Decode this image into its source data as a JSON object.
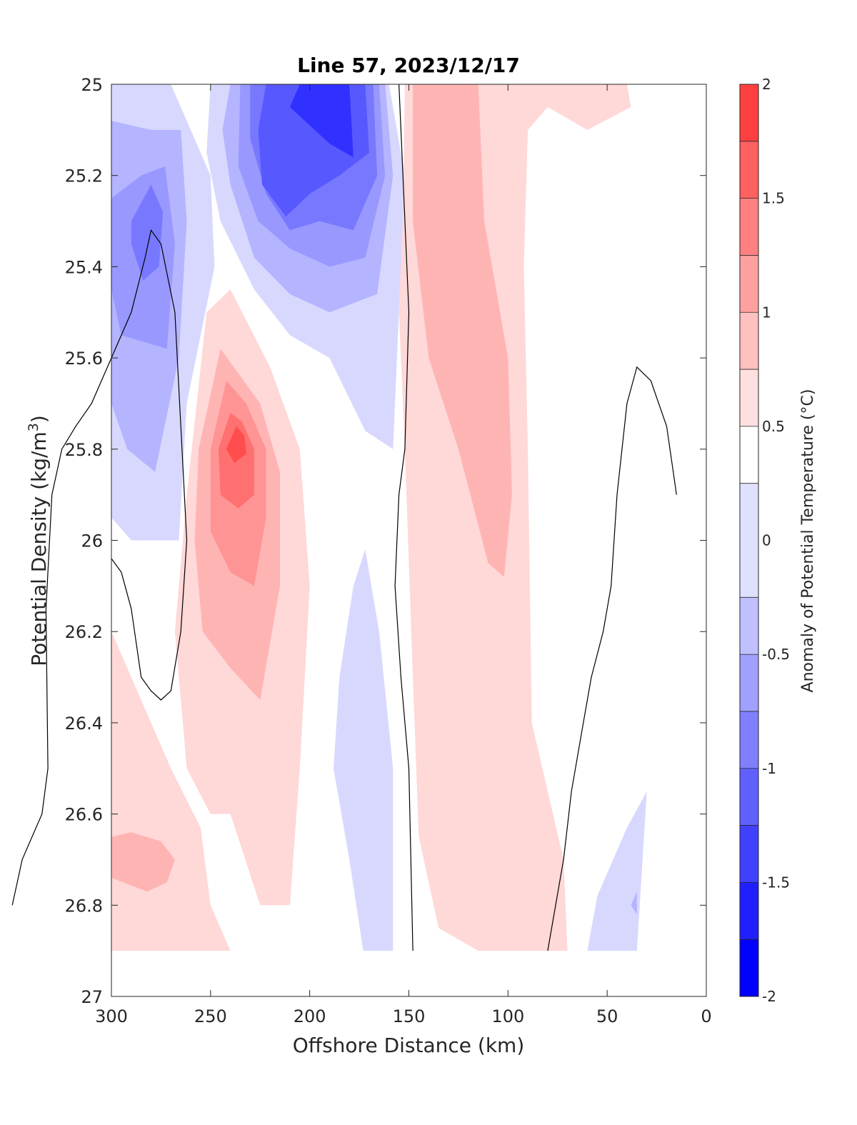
{
  "chart_data": {
    "type": "contour",
    "title": "Line 57, 2023/12/17",
    "xlabel": "Offshore Distance (km)",
    "ylabel_main": "Potential Density (kg/m",
    "ylabel_sup": "3",
    "ylabel_close": ")",
    "xlim": [
      300,
      0
    ],
    "ylim": [
      25,
      27
    ],
    "x_reversed": true,
    "y_reversed": true,
    "x_ticks": [
      300,
      250,
      200,
      150,
      100,
      50,
      0
    ],
    "x_tick_labels": [
      "300",
      "250",
      "200",
      "150",
      "100",
      "50",
      "0"
    ],
    "y_ticks": [
      25,
      25.2,
      25.4,
      25.6,
      25.8,
      26,
      26.2,
      26.4,
      26.6,
      26.8,
      27
    ],
    "y_tick_labels": [
      "25",
      "25.2",
      "25.4",
      "25.6",
      "25.8",
      "26",
      "26.2",
      "26.4",
      "26.6",
      "26.8",
      "27"
    ],
    "colorbar": {
      "label": "Anomaly of Potential Temperature (°C)",
      "range": [
        -2,
        2
      ],
      "ticks": [
        -2,
        -1.5,
        -1,
        -0.5,
        0,
        0.5,
        1,
        1.5,
        2
      ],
      "tick_labels": [
        "-2",
        "-1.5",
        "-1",
        "-0.5",
        "0",
        "0.5",
        "1",
        "1.5",
        "2"
      ],
      "levels": [
        -2,
        -1.75,
        -1.5,
        -1.25,
        -1,
        -0.75,
        -0.5,
        -0.25,
        0.25,
        0.5,
        0.75,
        1,
        1.25,
        1.5,
        1.75,
        2
      ],
      "colors": [
        "#0000ff",
        "#2020ff",
        "#4040ff",
        "#6060ff",
        "#8080ff",
        "#a0a0ff",
        "#c0c0ff",
        "#e0e0ff",
        "#ffffff",
        "#ffe0e0",
        "#ffc0c0",
        "#ffa0a0",
        "#ff8080",
        "#ff6060",
        "#ff4040",
        "#ff2020",
        "#ff0000"
      ]
    },
    "regions": [
      {
        "name": "cold-shallow-offshore",
        "anomaly": -0.25,
        "color": "#d8d8ff",
        "points": [
          [
            300,
            25
          ],
          [
            270,
            25
          ],
          [
            260,
            25.1
          ],
          [
            250,
            25.2
          ],
          [
            248,
            25.4
          ],
          [
            262,
            25.7
          ],
          [
            266,
            26
          ],
          [
            290,
            26
          ],
          [
            300,
            25.95
          ]
        ]
      },
      {
        "name": "cold-shallow-offshore-2",
        "anomaly": -0.5,
        "color": "#b4b4ff",
        "points": [
          [
            300,
            25.08
          ],
          [
            280,
            25.1
          ],
          [
            265,
            25.1
          ],
          [
            262,
            25.3
          ],
          [
            266,
            25.6
          ],
          [
            278,
            25.85
          ],
          [
            292,
            25.8
          ],
          [
            300,
            25.7
          ]
        ]
      },
      {
        "name": "cold-shallow-offshore-3",
        "anomaly": -0.75,
        "color": "#9898ff",
        "points": [
          [
            300,
            25.25
          ],
          [
            285,
            25.2
          ],
          [
            273,
            25.18
          ],
          [
            268,
            25.35
          ],
          [
            272,
            25.58
          ],
          [
            295,
            25.55
          ],
          [
            300,
            25.45
          ]
        ]
      },
      {
        "name": "cold-shallow-offshore-core",
        "anomaly": -1,
        "color": "#7878ff",
        "points": [
          [
            290,
            25.3
          ],
          [
            280,
            25.22
          ],
          [
            274,
            25.28
          ],
          [
            276,
            25.4
          ],
          [
            284,
            25.43
          ],
          [
            290,
            25.35
          ]
        ]
      },
      {
        "name": "cold-shallow-mid",
        "anomaly": -0.25,
        "color": "#d8d8ff",
        "points": [
          [
            250,
            25
          ],
          [
            230,
            25
          ],
          [
            185,
            25
          ],
          [
            160,
            25
          ],
          [
            152,
            25.2
          ],
          [
            156,
            25.6
          ],
          [
            158,
            25.8
          ],
          [
            172,
            25.76
          ],
          [
            190,
            25.6
          ],
          [
            210,
            25.55
          ],
          [
            228,
            25.45
          ],
          [
            245,
            25.3
          ],
          [
            252,
            25.15
          ]
        ]
      },
      {
        "name": "cold-shallow-mid-2",
        "anomaly": -0.5,
        "color": "#b4b4ff",
        "points": [
          [
            240,
            25
          ],
          [
            162,
            25
          ],
          [
            158,
            25.2
          ],
          [
            166,
            25.46
          ],
          [
            190,
            25.5
          ],
          [
            210,
            25.46
          ],
          [
            228,
            25.38
          ],
          [
            240,
            25.22
          ],
          [
            244,
            25.1
          ]
        ]
      },
      {
        "name": "cold-shallow-mid-3",
        "anomaly": -0.75,
        "color": "#9898ff",
        "points": [
          [
            235,
            25
          ],
          [
            165,
            25
          ],
          [
            162,
            25.2
          ],
          [
            172,
            25.38
          ],
          [
            190,
            25.4
          ],
          [
            210,
            25.36
          ],
          [
            226,
            25.3
          ],
          [
            236,
            25.18
          ]
        ]
      },
      {
        "name": "cold-shallow-mid-4",
        "anomaly": -1,
        "color": "#7878ff",
        "points": [
          [
            230,
            25
          ],
          [
            168,
            25
          ],
          [
            166,
            25.2
          ],
          [
            178,
            25.32
          ],
          [
            195,
            25.3
          ],
          [
            210,
            25.32
          ],
          [
            222,
            25.24
          ],
          [
            230,
            25.12
          ]
        ]
      },
      {
        "name": "cold-shallow-mid-5",
        "anomaly": -1.25,
        "color": "#5858ff",
        "points": [
          [
            222,
            25
          ],
          [
            172,
            25
          ],
          [
            170,
            25.15
          ],
          [
            185,
            25.2
          ],
          [
            200,
            25.24
          ],
          [
            212,
            25.29
          ],
          [
            224,
            25.22
          ],
          [
            226,
            25.1
          ]
        ]
      },
      {
        "name": "cold-shallow-mid-core",
        "anomaly": -1.5,
        "color": "#3030ff",
        "points": [
          [
            205,
            25
          ],
          [
            180,
            25
          ],
          [
            178,
            25.16
          ],
          [
            190,
            25.13
          ],
          [
            205,
            25.07
          ],
          [
            210,
            25.05
          ]
        ]
      },
      {
        "name": "warm-interior-offshore",
        "anomaly": 0.25,
        "color": "#ffd8d8",
        "points": [
          [
            252,
            25.5
          ],
          [
            262,
            25.9
          ],
          [
            268,
            26.2
          ],
          [
            262,
            26.5
          ],
          [
            250,
            26.6
          ],
          [
            240,
            26.6
          ],
          [
            225,
            26.8
          ],
          [
            210,
            26.8
          ],
          [
            205,
            26.5
          ],
          [
            200,
            26.1
          ],
          [
            205,
            25.8
          ],
          [
            220,
            25.62
          ],
          [
            240,
            25.45
          ]
        ]
      },
      {
        "name": "warm-interior-offshore-2",
        "anomaly": 0.5,
        "color": "#ffb4b4",
        "points": [
          [
            245,
            25.58
          ],
          [
            256,
            25.8
          ],
          [
            258,
            26
          ],
          [
            254,
            26.2
          ],
          [
            240,
            26.28
          ],
          [
            225,
            26.35
          ],
          [
            215,
            26.1
          ],
          [
            215,
            25.85
          ],
          [
            225,
            25.7
          ]
        ]
      },
      {
        "name": "warm-interior-offshore-3",
        "anomaly": 0.75,
        "color": "#ff9494",
        "points": [
          [
            242,
            25.65
          ],
          [
            250,
            25.8
          ],
          [
            250,
            25.98
          ],
          [
            240,
            26.07
          ],
          [
            228,
            26.1
          ],
          [
            222,
            25.95
          ],
          [
            222,
            25.8
          ],
          [
            232,
            25.7
          ]
        ]
      },
      {
        "name": "warm-interior-offshore-4",
        "anomaly": 1,
        "color": "#ff7070",
        "points": [
          [
            240,
            25.72
          ],
          [
            246,
            25.8
          ],
          [
            245,
            25.9
          ],
          [
            236,
            25.93
          ],
          [
            228,
            25.9
          ],
          [
            228,
            25.8
          ],
          [
            234,
            25.74
          ]
        ]
      },
      {
        "name": "warm-interior-offshore-core",
        "anomaly": 1.25,
        "color": "#ff4c4c",
        "points": [
          [
            237,
            25.75
          ],
          [
            242,
            25.8
          ],
          [
            238,
            25.83
          ],
          [
            232,
            25.81
          ],
          [
            233,
            25.77
          ]
        ]
      },
      {
        "name": "warm-deep-offshore",
        "anomaly": 0.25,
        "color": "#ffd8d8",
        "points": [
          [
            300,
            26.2
          ],
          [
            285,
            26.35
          ],
          [
            270,
            26.5
          ],
          [
            255,
            26.63
          ],
          [
            250,
            26.8
          ],
          [
            240,
            26.9
          ],
          [
            300,
            26.9
          ]
        ]
      },
      {
        "name": "warm-deep-offshore-2",
        "anomaly": 0.5,
        "color": "#ffb4b4",
        "points": [
          [
            300,
            26.65
          ],
          [
            290,
            26.64
          ],
          [
            275,
            26.66
          ],
          [
            268,
            26.7
          ],
          [
            272,
            26.75
          ],
          [
            282,
            26.77
          ],
          [
            300,
            26.74
          ]
        ]
      },
      {
        "name": "warm-inshore-band",
        "anomaly": 0.25,
        "color": "#ffd8d8",
        "points": [
          [
            152,
            25
          ],
          [
            40,
            25
          ],
          [
            38,
            25.05
          ],
          [
            60,
            25.1
          ],
          [
            80,
            25.05
          ],
          [
            90,
            25.1
          ],
          [
            92,
            25.4
          ],
          [
            90,
            25.8
          ],
          [
            88,
            26.4
          ],
          [
            80,
            26.55
          ],
          [
            72,
            26.7
          ],
          [
            70,
            26.9
          ],
          [
            115,
            26.9
          ],
          [
            135,
            26.85
          ],
          [
            145,
            26.65
          ],
          [
            148,
            26.3
          ],
          [
            152,
            25.8
          ],
          [
            155,
            25.5
          ],
          [
            153,
            25.3
          ]
        ]
      },
      {
        "name": "warm-inshore-band-2",
        "anomaly": 0.5,
        "color": "#ffb4b4",
        "points": [
          [
            148,
            25
          ],
          [
            115,
            25
          ],
          [
            112,
            25.3
          ],
          [
            100,
            25.6
          ],
          [
            98,
            25.9
          ],
          [
            102,
            26.08
          ],
          [
            110,
            26.05
          ],
          [
            125,
            25.8
          ],
          [
            140,
            25.6
          ],
          [
            148,
            25.3
          ]
        ]
      },
      {
        "name": "cold-deep-mid",
        "anomaly": -0.25,
        "color": "#d8d8ff",
        "points": [
          [
            172,
            26.02
          ],
          [
            165,
            26.2
          ],
          [
            158,
            26.5
          ],
          [
            158,
            26.9
          ],
          [
            173,
            26.9
          ],
          [
            180,
            26.7
          ],
          [
            188,
            26.5
          ],
          [
            185,
            26.3
          ],
          [
            178,
            26.1
          ]
        ]
      },
      {
        "name": "cold-deep-inshore",
        "anomaly": -0.25,
        "color": "#d8d8ff",
        "points": [
          [
            30,
            26.55
          ],
          [
            40,
            26.63
          ],
          [
            55,
            26.78
          ],
          [
            60,
            26.9
          ],
          [
            35,
            26.9
          ]
        ]
      },
      {
        "name": "cold-deep-inshore-core",
        "anomaly": -0.5,
        "color": "#b4b4ff",
        "points": [
          [
            35,
            26.77
          ],
          [
            38,
            26.8
          ],
          [
            35,
            26.82
          ]
        ]
      }
    ],
    "zero_contours": [
      {
        "name": "zero-contour-offshore",
        "points": [
          [
            300,
            26.04
          ],
          [
            295,
            26.07
          ],
          [
            290,
            26.15
          ],
          [
            285,
            26.3
          ],
          [
            280,
            26.33
          ],
          [
            275,
            26.35
          ],
          [
            270,
            26.33
          ],
          [
            265,
            26.2
          ],
          [
            262,
            26
          ],
          [
            265,
            25.75
          ],
          [
            268,
            25.5
          ],
          [
            275,
            25.35
          ],
          [
            280,
            25.32
          ],
          [
            283,
            25.38
          ],
          [
            290,
            25.5
          ],
          [
            300,
            25.6
          ],
          [
            310,
            25.7
          ],
          [
            318,
            25.75
          ],
          [
            325,
            25.8
          ],
          [
            330,
            25.9
          ],
          [
            333,
            26.15
          ],
          [
            332,
            26.5
          ],
          [
            335,
            26.6
          ],
          [
            340,
            26.65
          ],
          [
            345,
            26.7
          ],
          [
            350,
            26.8
          ]
        ]
      },
      {
        "name": "zero-contour-center",
        "points": [
          [
            155,
            25
          ],
          [
            153,
            25.2
          ],
          [
            150,
            25.5
          ],
          [
            152,
            25.8
          ],
          [
            155,
            25.9
          ],
          [
            157,
            26.1
          ],
          [
            154,
            26.3
          ],
          [
            150,
            26.5
          ],
          [
            148,
            26.9
          ]
        ]
      },
      {
        "name": "zero-contour-inshore",
        "points": [
          [
            15,
            25.9
          ],
          [
            20,
            25.75
          ],
          [
            28,
            25.65
          ],
          [
            35,
            25.62
          ],
          [
            40,
            25.7
          ],
          [
            45,
            25.9
          ],
          [
            48,
            26.1
          ],
          [
            52,
            26.2
          ],
          [
            58,
            26.3
          ],
          [
            62,
            26.4
          ],
          [
            68,
            26.55
          ],
          [
            72,
            26.7
          ],
          [
            80,
            26.9
          ]
        ]
      }
    ]
  }
}
